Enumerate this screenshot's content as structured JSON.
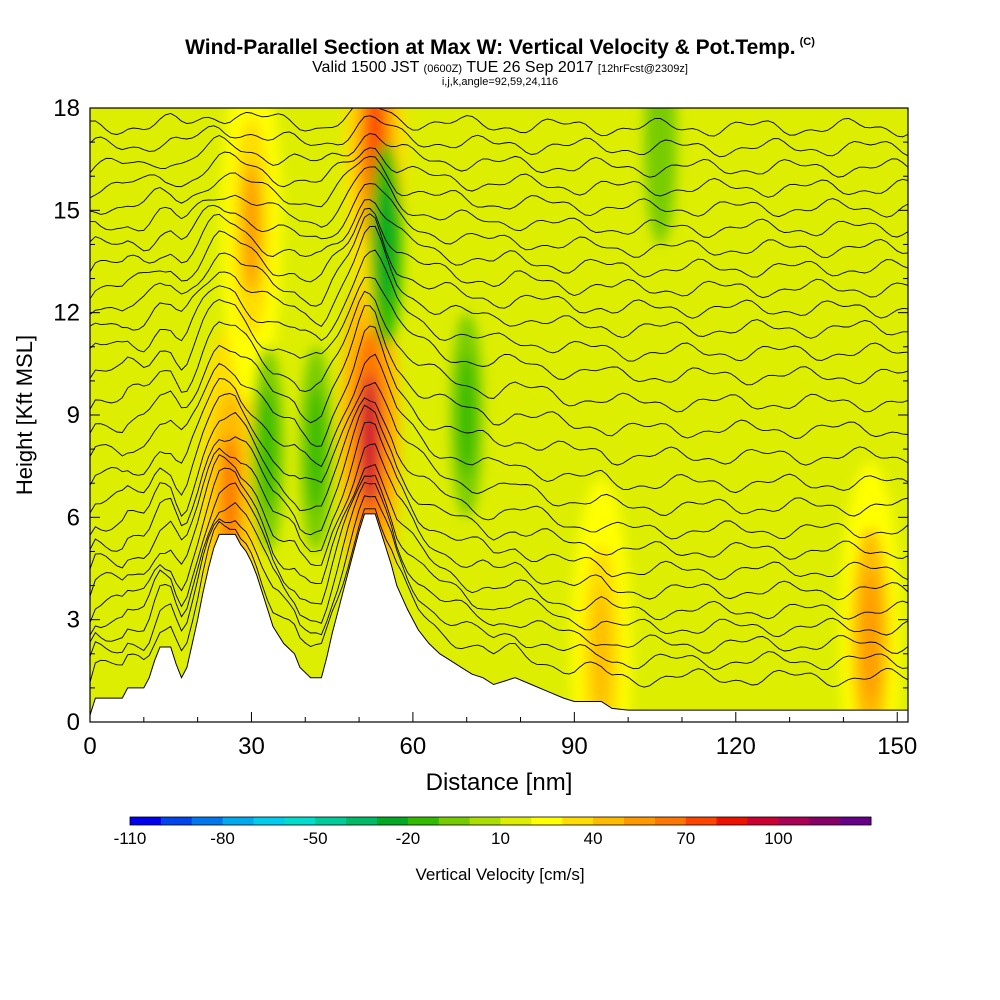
{
  "title": {
    "main": "Wind-Parallel Section at Max W: Vertical Velocity & Pot.Temp.",
    "copyright": "(C)",
    "valid_a": "Valid 1500 JST",
    "valid_utc": "(0600Z)",
    "valid_b": "TUE 26 Sep 2017",
    "forecast": "[12hrFcst@2309z]",
    "indices": "i,j,k,angle=92,59,24,116"
  },
  "chart_data": {
    "type": "heatmap",
    "xlabel": "Distance [nm]",
    "ylabel": "Height [Kft MSL]",
    "xlim": [
      0,
      152
    ],
    "ylim": [
      0,
      18
    ],
    "xticks": [
      0,
      30,
      60,
      90,
      120,
      150
    ],
    "yticks": [
      0,
      3,
      6,
      9,
      12,
      15,
      18
    ],
    "colorbar": {
      "label": "Vertical Velocity [cm/s]",
      "tick_labels": [
        -110,
        -80,
        -50,
        -20,
        10,
        40,
        70,
        100
      ],
      "colors": [
        "#0000ee",
        "#0044ee",
        "#0077ee",
        "#00aaee",
        "#00ccee",
        "#00ddcc",
        "#00cc99",
        "#00bb66",
        "#00aa22",
        "#33bb00",
        "#77cc00",
        "#aadd00",
        "#ddee00",
        "#ffff00",
        "#ffdd00",
        "#ffbb00",
        "#ff9900",
        "#ff7700",
        "#ff4400",
        "#ee1100",
        "#cc0033",
        "#aa0055",
        "#880066",
        "#660088"
      ]
    },
    "terrain_profile": [
      [
        0,
        0.2
      ],
      [
        1,
        0.7
      ],
      [
        6,
        0.7
      ],
      [
        7,
        1.0
      ],
      [
        10,
        1.0
      ],
      [
        11,
        1.3
      ],
      [
        12,
        1.8
      ],
      [
        13,
        2.2
      ],
      [
        15,
        2.2
      ],
      [
        16,
        1.7
      ],
      [
        17,
        1.3
      ],
      [
        18,
        1.6
      ],
      [
        19,
        2.3
      ],
      [
        20,
        3.0
      ],
      [
        21,
        3.8
      ],
      [
        22,
        4.5
      ],
      [
        23,
        5.1
      ],
      [
        24,
        5.5
      ],
      [
        27,
        5.5
      ],
      [
        28,
        5.2
      ],
      [
        29,
        5.0
      ],
      [
        30,
        4.7
      ],
      [
        31,
        4.3
      ],
      [
        32,
        3.8
      ],
      [
        33,
        3.3
      ],
      [
        34,
        2.8
      ],
      [
        36,
        2.3
      ],
      [
        38,
        2.0
      ],
      [
        39,
        1.6
      ],
      [
        41,
        1.3
      ],
      [
        43,
        1.3
      ],
      [
        44,
        1.9
      ],
      [
        45,
        2.6
      ],
      [
        46,
        3.2
      ],
      [
        47,
        3.8
      ],
      [
        48,
        4.4
      ],
      [
        49,
        5.0
      ],
      [
        50,
        5.6
      ],
      [
        51,
        6.1
      ],
      [
        53,
        6.1
      ],
      [
        54,
        5.6
      ],
      [
        55,
        5.1
      ],
      [
        56,
        4.6
      ],
      [
        57,
        4.0
      ],
      [
        59,
        3.3
      ],
      [
        61,
        2.7
      ],
      [
        63,
        2.3
      ],
      [
        65,
        2.0
      ],
      [
        67,
        1.8
      ],
      [
        69,
        1.6
      ],
      [
        71,
        1.4
      ],
      [
        73,
        1.3
      ],
      [
        75,
        1.1
      ],
      [
        77,
        1.2
      ],
      [
        79,
        1.3
      ],
      [
        82,
        1.1
      ],
      [
        85,
        0.9
      ],
      [
        88,
        0.7
      ],
      [
        90,
        0.6
      ],
      [
        95,
        0.6
      ],
      [
        97,
        0.4
      ],
      [
        100,
        0.35
      ],
      [
        110,
        0.35
      ],
      [
        130,
        0.35
      ],
      [
        152,
        0.35
      ]
    ],
    "updrafts": [
      {
        "x": 26,
        "z": 6.5,
        "peak_cm_s": 55
      },
      {
        "x": 52,
        "z": 8.3,
        "peak_cm_s": 85
      },
      {
        "x": 53,
        "z": 17.0,
        "peak_cm_s": 60
      },
      {
        "x": 30,
        "z": 14.5,
        "peak_cm_s": 40
      },
      {
        "x": 145,
        "z": 2.5,
        "peak_cm_s": 45
      },
      {
        "x": 95,
        "z": 2.0,
        "peak_cm_s": 35
      }
    ],
    "downdrafts": [
      {
        "x": 55,
        "z": 14,
        "peak_cm_s": -40
      },
      {
        "x": 33,
        "z": 8,
        "peak_cm_s": -30
      },
      {
        "x": 42,
        "z": 8,
        "peak_cm_s": -25
      },
      {
        "x": 70,
        "z": 9,
        "peak_cm_s": -25
      },
      {
        "x": 106,
        "z": 17,
        "peak_cm_s": -20
      }
    ],
    "theta_contours": {
      "color": "#000000",
      "min_height_kft": [
        1.0,
        1.5,
        2.0,
        2.5,
        3.0,
        3.6,
        4.2,
        4.8,
        5.4,
        6.1,
        6.8,
        7.6,
        8.4,
        9.2,
        10.0,
        10.7,
        11.4,
        12.0,
        12.6,
        13.2,
        13.8,
        14.4,
        15.0,
        15.6,
        16.2,
        16.8,
        17.4
      ]
    }
  }
}
